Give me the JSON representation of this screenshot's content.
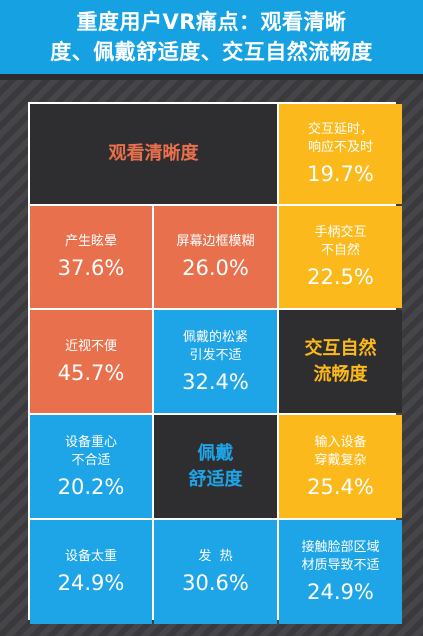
{
  "header": {
    "line1": "重度用户VR痛点：观看清晰",
    "line2": "度、佩戴舒适度、交互自然流畅度"
  },
  "colors": {
    "header_blue": "#16a1e3",
    "orange": "#e8704c",
    "blue": "#1ea5e8",
    "yellow": "#fbb91c",
    "dark": "#2e2e30"
  },
  "categories": {
    "clarity": "观看清晰度",
    "comfort_line1": "佩戴",
    "comfort_line2": "舒适度",
    "interaction_line1": "交互自然",
    "interaction_line2": "流畅度"
  },
  "cells": {
    "latency": {
      "label1": "交互延时，",
      "label2": "响应不及时",
      "value": "19.7%"
    },
    "dizzy": {
      "label1": "产生眩晕",
      "value": "37.6%"
    },
    "blur": {
      "label1": "屏幕边框模糊",
      "value": "26.0%"
    },
    "handle": {
      "label1": "手柄交互",
      "label2": "不自然",
      "value": "22.5%"
    },
    "myopia": {
      "label1": "近视不便",
      "value": "45.7%"
    },
    "tightness": {
      "label1": "佩戴的松紧",
      "label2": "引发不适",
      "value": "32.4%"
    },
    "center": {
      "label1": "设备重心",
      "label2": "不合适",
      "value": "20.2%"
    },
    "input": {
      "label1": "输入设备",
      "label2": "穿戴复杂",
      "value": "25.4%"
    },
    "heavy": {
      "label1": "设备太重",
      "value": "24.9%"
    },
    "heat": {
      "label1": "发  热",
      "value": "30.6%"
    },
    "contact": {
      "label1": "接触脸部区域",
      "label2": "材质导致不适",
      "value": "24.9%"
    }
  }
}
